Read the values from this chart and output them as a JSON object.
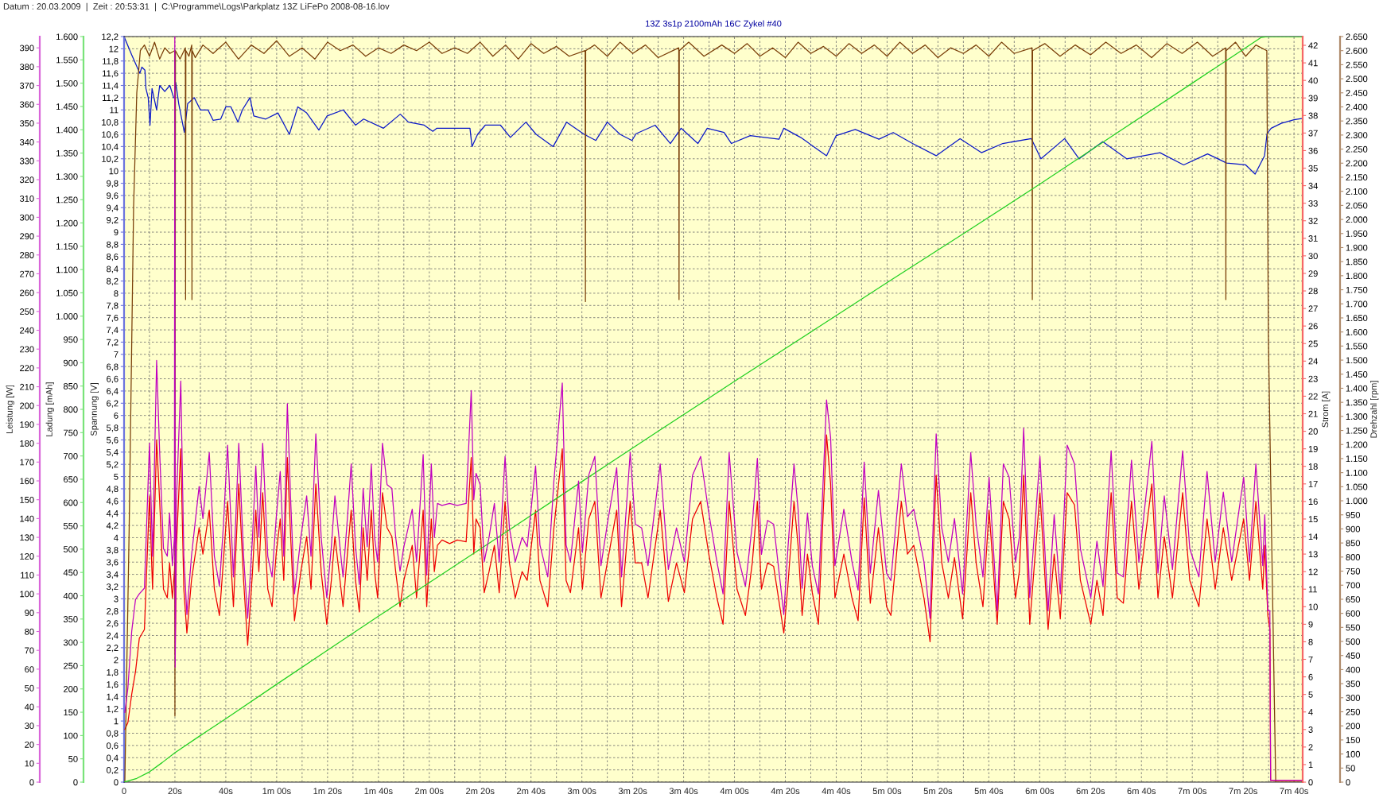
{
  "chart_data": [
    {
      "type": "line",
      "title": "13Z 3s1p 2100mAh 16C Zykel #40",
      "annotations": [
        "Datum : 20.03.2009  |  Zeit : 20:53:31  |  C:\\Programme\\Logs\\Parkplatz 13Z LiFePo 2008-08-16.lov"
      ],
      "grid": true,
      "xlim": [
        0,
        463.4
      ],
      "xticks": [
        0,
        {
          "value": 10,
          "label": null
        },
        {
          "value": 20,
          "label": "20s"
        },
        {
          "value": 30,
          "label": null
        },
        {
          "value": 40,
          "label": "40s"
        },
        {
          "value": 50,
          "label": null
        },
        {
          "value": 60,
          "label": "1m 00s"
        },
        {
          "value": 70,
          "label": null
        },
        {
          "value": 80,
          "label": "1m 20s"
        },
        {
          "value": 90,
          "label": null
        },
        {
          "value": 100,
          "label": "1m 40s"
        },
        {
          "value": 110,
          "label": null
        },
        {
          "value": 120,
          "label": "2m 00s"
        },
        {
          "value": 130,
          "label": null
        },
        {
          "value": 140,
          "label": "2m 20s"
        },
        {
          "value": 150,
          "label": null
        },
        {
          "value": 160,
          "label": "2m 40s"
        },
        {
          "value": 170,
          "label": null
        },
        {
          "value": 180,
          "label": "3m 00s"
        },
        {
          "value": 190,
          "label": null
        },
        {
          "value": 200,
          "label": "3m 20s"
        },
        {
          "value": 210,
          "label": null
        },
        {
          "value": 220,
          "label": "3m 40s"
        },
        {
          "value": 230,
          "label": null
        },
        {
          "value": 240,
          "label": "4m 00s"
        },
        {
          "value": 250,
          "label": null
        },
        {
          "value": 260,
          "label": "4m 20s"
        },
        {
          "value": 270,
          "label": null
        },
        {
          "value": 280,
          "label": "4m 40s"
        },
        {
          "value": 290,
          "label": null
        },
        {
          "value": 300,
          "label": "5m 00s"
        },
        {
          "value": 310,
          "label": null
        },
        {
          "value": 320,
          "label": "5m 20s"
        },
        {
          "value": 330,
          "label": null
        },
        {
          "value": 340,
          "label": "5m 40s"
        },
        {
          "value": 350,
          "label": null
        },
        {
          "value": 360,
          "label": "6m 00s"
        },
        {
          "value": 370,
          "label": null
        },
        {
          "value": 380,
          "label": "6m 20s"
        },
        {
          "value": 390,
          "label": null
        },
        {
          "value": 400,
          "label": "6m 40s"
        },
        {
          "value": 410,
          "label": null
        },
        {
          "value": 420,
          "label": "7m 00s"
        },
        {
          "value": 430,
          "label": null
        },
        {
          "value": 440,
          "label": "7m 20s"
        },
        {
          "value": 450,
          "label": null
        },
        {
          "value": 460,
          "label": "7m 40s"
        }
      ],
      "ylabel": "Spannung [V]",
      "ylim": [
        0,
        12.2
      ],
      "yticks": [
        0,
        {
          "value": 0.2,
          "label": "0,2"
        },
        {
          "value": 0.4,
          "label": "0,4"
        },
        {
          "value": 0.6,
          "label": "0,6"
        },
        {
          "value": 0.8,
          "label": "0,8"
        },
        1,
        {
          "value": 1.2,
          "label": "1,2"
        },
        {
          "value": 1.4,
          "label": "1,4"
        },
        {
          "value": 1.6,
          "label": "1,6"
        },
        {
          "value": 1.8,
          "label": "1,8"
        },
        2,
        {
          "value": 2.2,
          "label": "2,2"
        },
        {
          "value": 2.4,
          "label": "2,4"
        },
        {
          "value": 2.6,
          "label": "2,6"
        },
        {
          "value": 2.8,
          "label": "2,8"
        },
        3,
        {
          "value": 3.2,
          "label": "3,2"
        },
        {
          "value": 3.4,
          "label": "3,4"
        },
        {
          "value": 3.6,
          "label": "3,6"
        },
        {
          "value": 3.8,
          "label": "3,8"
        },
        4,
        {
          "value": 4.2,
          "label": "4,2"
        },
        {
          "value": 4.4,
          "label": "4,4"
        },
        {
          "value": 4.6,
          "label": "4,6"
        },
        {
          "value": 4.8,
          "label": "4,8"
        },
        5,
        {
          "value": 5.2,
          "label": "5,2"
        },
        {
          "value": 5.4,
          "label": "5,4"
        },
        {
          "value": 5.6,
          "label": "5,6"
        },
        {
          "value": 5.8,
          "label": "5,8"
        },
        6,
        {
          "value": 6.2,
          "label": "6,2"
        },
        {
          "value": 6.4,
          "label": "6,4"
        },
        {
          "value": 6.6,
          "label": "6,6"
        },
        {
          "value": 6.8,
          "label": "6,8"
        },
        7,
        {
          "value": 7.2,
          "label": "7,2"
        },
        {
          "value": 7.4,
          "label": "7,4"
        },
        {
          "value": 7.6,
          "label": "7,6"
        },
        {
          "value": 7.8,
          "label": "7,8"
        },
        8,
        {
          "value": 8.2,
          "label": "8,2"
        },
        {
          "value": 8.4,
          "label": "8,4"
        },
        {
          "value": 8.6,
          "label": "8,6"
        },
        {
          "value": 8.8,
          "label": "8,8"
        },
        9,
        {
          "value": 9.2,
          "label": "9,2"
        },
        {
          "value": 9.4,
          "label": "9,4"
        },
        {
          "value": 9.6,
          "label": "9,6"
        },
        {
          "value": 9.8,
          "label": "9,8"
        },
        10,
        {
          "value": 10.2,
          "label": "10,2"
        },
        {
          "value": 10.4,
          "label": "10,4"
        },
        {
          "value": 10.6,
          "label": "10,6"
        },
        {
          "value": 10.8,
          "label": "10,8"
        },
        11,
        {
          "value": 11.2,
          "label": "11,2"
        },
        {
          "value": 11.4,
          "label": "11,4"
        },
        {
          "value": 11.6,
          "label": "11,6"
        },
        {
          "value": 11.8,
          "label": "11,8"
        },
        12,
        {
          "value": 12.2,
          "label": "12,2"
        }
      ],
      "y2label": "Strom [A]",
      "y2lim": [
        0,
        42.5
      ],
      "y2ticks": [
        0,
        1,
        2,
        3,
        4,
        5,
        6,
        7,
        8,
        9,
        10,
        11,
        12,
        13,
        14,
        15,
        16,
        17,
        18,
        19,
        20,
        21,
        22,
        23,
        24,
        25,
        26,
        27,
        28,
        29,
        30,
        31,
        32,
        33,
        34,
        35,
        36,
        37,
        38,
        39,
        40,
        41,
        42
      ],
      "y3label": "Drehzahl [rpm]",
      "y3lim": [
        0,
        2650
      ],
      "y3ticks": [
        0,
        50,
        100,
        150,
        200,
        250,
        300,
        350,
        400,
        450,
        500,
        550,
        600,
        650,
        700,
        750,
        800,
        850,
        900,
        950,
        {
          "value": 1000,
          "label": "1.000"
        },
        {
          "value": 1050,
          "label": "1.050"
        },
        {
          "value": 1100,
          "label": "1.100"
        },
        {
          "value": 1150,
          "label": "1.150"
        },
        {
          "value": 1200,
          "label": "1.200"
        },
        {
          "value": 1250,
          "label": "1.250"
        },
        {
          "value": 1300,
          "label": "1.300"
        },
        {
          "value": 1350,
          "label": "1.350"
        },
        {
          "value": 1400,
          "label": "1.400"
        },
        {
          "value": 1450,
          "label": "1.450"
        },
        {
          "value": 1500,
          "label": "1.500"
        },
        {
          "value": 1550,
          "label": "1.550"
        },
        {
          "value": 1600,
          "label": "1.600"
        },
        {
          "value": 1650,
          "label": "1.650"
        },
        {
          "value": 1700,
          "label": "1.700"
        },
        {
          "value": 1750,
          "label": "1.750"
        },
        {
          "value": 1800,
          "label": "1.800"
        },
        {
          "value": 1850,
          "label": "1.850"
        },
        {
          "value": 1900,
          "label": "1.900"
        },
        {
          "value": 1950,
          "label": "1.950"
        },
        {
          "value": 2000,
          "label": "2.000"
        },
        {
          "value": 2050,
          "label": "2.050"
        },
        {
          "value": 2100,
          "label": "2.100"
        },
        {
          "value": 2150,
          "label": "2.150"
        },
        {
          "value": 2200,
          "label": "2.200"
        },
        {
          "value": 2250,
          "label": "2.250"
        },
        {
          "value": 2300,
          "label": "2.300"
        },
        {
          "value": 2350,
          "label": "2.350"
        },
        {
          "value": 2400,
          "label": "2.400"
        },
        {
          "value": 2450,
          "label": "2.450"
        },
        {
          "value": 2500,
          "label": "2.500"
        },
        {
          "value": 2550,
          "label": "2.550"
        },
        {
          "value": 2600,
          "label": "2.600"
        },
        {
          "value": 2650,
          "label": "2.650"
        }
      ],
      "series": [
        {
          "axis": "y",
          "color": "#0a18c8",
          "x": [
            0,
            3,
            6.2,
            7,
            8.2,
            8.6,
            9.5,
            10.2,
            11,
            12.8,
            14,
            16,
            18,
            19.5,
            20,
            20.3,
            21.5,
            23.7,
            25,
            27.6,
            30,
            33,
            35,
            38,
            40,
            42,
            44.8,
            46.5,
            49.5,
            51,
            55.7,
            60.5,
            65,
            68.3,
            71.8,
            76.6,
            79.8,
            86.2,
            91,
            94.2,
            102,
            108.6,
            111.8,
            118,
            121.4,
            123,
            136,
            136.8,
            139,
            142,
            148,
            151.9,
            158,
            162,
            168.7,
            174,
            180.9,
            185.5,
            190,
            195,
            199.7,
            201.3,
            208.8,
            214.8,
            219,
            225.6,
            229.3,
            235.9,
            238.8,
            246.2,
            257.5,
            259.4,
            266,
            276.2,
            280,
            287.5,
            296.8,
            302.4,
            310,
            319.3,
            328.7,
            337.1,
            345.5,
            356.7,
            360.5,
            369.8,
            375.5,
            384.8,
            394.2,
            407.3,
            416.6,
            426,
            433.5,
            441,
            444.7,
            448.4,
            449.4,
            451,
            455,
            460,
            463
          ],
          "values": [
            12.2,
            11.9,
            11.6,
            11.7,
            11.65,
            11.35,
            11.2,
            10.75,
            11.35,
            11.0,
            11.4,
            11.3,
            11.4,
            11.2,
            11.2,
            11.45,
            11.1,
            10.63,
            11.1,
            11.2,
            11.0,
            11.0,
            10.83,
            10.85,
            11.05,
            11.05,
            10.8,
            11.0,
            11.2,
            10.9,
            10.85,
            10.95,
            10.6,
            11.05,
            10.95,
            10.67,
            10.9,
            11.0,
            10.75,
            10.85,
            10.7,
            10.93,
            10.8,
            10.75,
            10.65,
            10.7,
            10.7,
            10.4,
            10.6,
            10.75,
            10.75,
            10.55,
            10.8,
            10.6,
            10.4,
            10.8,
            10.6,
            10.5,
            10.8,
            10.6,
            10.5,
            10.61,
            10.75,
            10.45,
            10.7,
            10.45,
            10.7,
            10.63,
            10.45,
            10.58,
            10.52,
            10.7,
            10.55,
            10.25,
            10.58,
            10.68,
            10.52,
            10.63,
            10.45,
            10.25,
            10.53,
            10.3,
            10.45,
            10.53,
            10.2,
            10.53,
            10.2,
            10.48,
            10.2,
            10.3,
            10.1,
            10.28,
            10.13,
            10.1,
            9.95,
            10.25,
            10.61,
            10.7,
            10.78,
            10.84,
            10.86
          ]
        },
        {
          "axis": "y2",
          "color": "#ee0000",
          "x": [
            0.3,
            1.5,
            3,
            4.5,
            6,
            8,
            10,
            11.2,
            12.8,
            14,
            15.5,
            17,
            17.9,
            19,
            19.8,
            19.95,
            20.1,
            20.6,
            22.3,
            23.5,
            24.7,
            26.5,
            29.5,
            31,
            33.5,
            35.5,
            37.5,
            39,
            40.7,
            43,
            45.1,
            47,
            48.6,
            50.5,
            51.8,
            53,
            54.5,
            56.5,
            58.2,
            59.8,
            61.4,
            62.8,
            64.2,
            65.5,
            67,
            69.5,
            71.8,
            73.5,
            75.4,
            77.5,
            79.7,
            81.5,
            82.9,
            84.5,
            86.1,
            87.8,
            89.3,
            91,
            92.5,
            94,
            95.6,
            97.2,
            98.5,
            99.7,
            101.6,
            103.4,
            105.3,
            106.8,
            108.5,
            110,
            111.7,
            113.3,
            115,
            117.6,
            119,
            120.8,
            122,
            123.2,
            125,
            128,
            131,
            134.5,
            136.5,
            137.5,
            138.4,
            140,
            141.6,
            143.5,
            145.6,
            147.5,
            149.8,
            151.5,
            153.8,
            156.5,
            158.5,
            161.8,
            163.5,
            166.6,
            169,
            172.3,
            173.8,
            175.5,
            178.7,
            180.2,
            182.7,
            185.1,
            187.5,
            190,
            193.7,
            195.6,
            199,
            201,
            203.5,
            206,
            210.8,
            214,
            217.2,
            220.3,
            223.5,
            226.7,
            229.9,
            233.1,
            235.5,
            237.9,
            241,
            244.3,
            247,
            249,
            250.6,
            253,
            255.4,
            259.4,
            261,
            263.4,
            265,
            266.6,
            268.7,
            270.6,
            273,
            276.2,
            277.8,
            279.5,
            283,
            286.2,
            288.6,
            291,
            293.4,
            296.6,
            299.8,
            301.5,
            305.6,
            308,
            310.5,
            314.5,
            316.9,
            319.3,
            321.5,
            324.1,
            326.5,
            329.7,
            332.9,
            335,
            337.7,
            340.1,
            343.3,
            345.7,
            348,
            350.5,
            352,
            353.7,
            356.1,
            360.1,
            363.3,
            365.7,
            368.1,
            370.8,
            373.7,
            376,
            380.1,
            382.5,
            384.9,
            388.1,
            390.5,
            392.9,
            396.1,
            399,
            404.1,
            406.5,
            409,
            412.2,
            416.2,
            419,
            422.6,
            425.8,
            429,
            432.2,
            435.5,
            440.2,
            442.5,
            445,
            447.7,
            448.5,
            449.7,
            450.5,
            450.8,
            463
          ],
          "values": [
            3.0,
            3.4,
            5.0,
            6.3,
            8.2,
            8.7,
            16.3,
            11.0,
            19.5,
            16.0,
            11.0,
            10.5,
            12.5,
            10.5,
            12.0,
            12.5,
            7.3,
            13.5,
            19.0,
            11.0,
            8.5,
            11.5,
            14.5,
            13.0,
            15.5,
            11.0,
            9.5,
            12.5,
            16.0,
            10.0,
            17.0,
            11.5,
            7.8,
            12.0,
            15.5,
            12.0,
            16.5,
            11.0,
            10.0,
            13.0,
            15.0,
            11.5,
            18.5,
            14.0,
            9.2,
            12.0,
            14.0,
            11.0,
            17.0,
            12.0,
            9.0,
            11.5,
            14.0,
            12.0,
            10.0,
            13.0,
            15.5,
            11.5,
            9.7,
            14.5,
            11.5,
            15.5,
            12.0,
            10.5,
            16.5,
            14.5,
            14.0,
            12.0,
            10.0,
            11.5,
            12.5,
            13.5,
            10.5,
            15.5,
            10.0,
            15.0,
            12.0,
            13.5,
            13.8,
            13.6,
            13.8,
            13.7,
            18.5,
            13.0,
            15.0,
            14.5,
            10.8,
            12.0,
            13.5,
            10.8,
            16.0,
            12.5,
            10.5,
            12.0,
            11.5,
            15.5,
            11.5,
            10.0,
            14.5,
            19.0,
            11.5,
            10.8,
            14.5,
            11.0,
            15.0,
            16.0,
            10.5,
            12.5,
            15.5,
            10.0,
            16.0,
            12.5,
            12.5,
            10.5,
            15.5,
            10.3,
            12.5,
            10.8,
            15.0,
            16.0,
            13.0,
            10.5,
            9.0,
            16.0,
            11.0,
            9.5,
            12.5,
            16.0,
            11.0,
            12.5,
            12.3,
            8.5,
            11.2,
            16.0,
            13.5,
            9.5,
            13.0,
            10.8,
            9.0,
            19.8,
            17.0,
            10.5,
            13.0,
            10.5,
            9.2,
            16.2,
            10.2,
            14.5,
            10.0,
            9.5,
            16.0,
            13.0,
            13.5,
            10.5,
            8.0,
            17.5,
            12.5,
            10.5,
            12.8,
            9.3,
            16.5,
            12.5,
            10.0,
            15.5,
            9.0,
            16.0,
            15.0,
            10.5,
            12.0,
            17.5,
            9.0,
            16.5,
            8.7,
            13.0,
            9.3,
            16.5,
            15.8,
            11.5,
            9.0,
            11.5,
            9.5,
            16.5,
            10.5,
            10.2,
            16.0,
            11.0,
            17.0,
            10.5,
            14.0,
            10.5,
            16.5,
            11.5,
            10.0,
            15.0,
            11.0,
            14.5,
            11.5,
            15.0,
            11.5,
            16.0,
            11.0,
            13.5,
            9.5,
            8.7,
            0.1,
            0.1
          ]
        },
        {
          "axis": "y3",
          "color": "#7a3e08",
          "x": [
            0.3,
            2,
            3.75,
            5,
            6.4,
            8,
            10,
            12,
            14,
            16,
            18,
            19.9,
            20,
            20.2,
            22,
            24.1,
            24.2,
            24.3,
            25.5,
            26.6,
            26.7,
            26.8,
            28,
            31,
            35,
            40,
            45,
            50,
            55,
            60,
            65,
            70,
            75,
            80,
            85,
            90,
            95,
            100,
            105,
            110,
            115,
            120,
            125,
            130,
            135,
            140,
            145,
            150,
            155,
            160,
            165,
            170,
            175,
            181.3,
            181.4,
            181.5,
            185,
            190,
            195,
            200,
            205,
            210,
            218.1,
            218.2,
            218.3,
            222,
            228,
            235,
            240,
            245,
            250,
            255,
            260,
            265,
            270,
            275,
            280,
            285,
            290,
            295,
            300,
            305,
            310,
            315,
            320,
            325,
            330,
            335,
            340,
            345,
            350,
            357,
            357.1,
            357.2,
            362,
            368,
            374,
            380,
            386,
            392,
            398,
            404,
            410,
            416,
            422,
            428,
            433.1,
            433.2,
            433.3,
            437,
            441,
            445,
            449.3,
            449.9,
            451.5,
            452.8,
            463
          ],
          "values": [
            0,
            900,
            2046,
            2450,
            2600,
            2620,
            2580,
            2630,
            2570,
            2610,
            2590,
            2600,
            235,
            2600,
            2570,
            2610,
            1715,
            2600,
            2580,
            2620,
            1715,
            2600,
            2575,
            2620,
            2590,
            2630,
            2570,
            2620,
            2590,
            2635,
            2580,
            2610,
            2570,
            2630,
            2600,
            2620,
            2580,
            2610,
            2590,
            2620,
            2600,
            2630,
            2590,
            2610,
            2590,
            2630,
            2580,
            2620,
            2570,
            2625,
            2590,
            2615,
            2580,
            2600,
            1708,
            2600,
            2620,
            2580,
            2630,
            2590,
            2620,
            2575,
            2610,
            1715,
            2600,
            2630,
            2580,
            2620,
            2590,
            2625,
            2580,
            2610,
            2575,
            2630,
            2590,
            2615,
            2580,
            2625,
            2590,
            2620,
            2580,
            2630,
            2590,
            2620,
            2575,
            2610,
            2590,
            2620,
            2580,
            2630,
            2590,
            2610,
            1715,
            2600,
            2625,
            2580,
            2620,
            2585,
            2630,
            2590,
            2620,
            2575,
            2625,
            2590,
            2630,
            2580,
            2610,
            1715,
            2600,
            2630,
            2580,
            2620,
            2600,
            1594,
            700,
            0,
            0
          ]
        }
      ]
    },
    {
      "type": "line",
      "tick_labels": "y",
      "xlim": [
        0,
        463.4
      ],
      "ylabel": "Ladung [mAh]",
      "ylim": [
        0,
        1600
      ],
      "yticks": [
        0,
        50,
        100,
        150,
        200,
        250,
        300,
        350,
        400,
        450,
        500,
        550,
        600,
        650,
        700,
        750,
        800,
        850,
        900,
        950,
        {
          "value": 1000,
          "label": "1.000"
        },
        {
          "value": 1050,
          "label": "1.050"
        },
        {
          "value": 1100,
          "label": "1.100"
        },
        {
          "value": 1150,
          "label": "1.150"
        },
        {
          "value": 1200,
          "label": "1.200"
        },
        {
          "value": 1250,
          "label": "1.250"
        },
        {
          "value": 1300,
          "label": "1.300"
        },
        {
          "value": 1350,
          "label": "1.350"
        },
        {
          "value": 1400,
          "label": "1.400"
        },
        {
          "value": 1450,
          "label": "1.450"
        },
        {
          "value": 1500,
          "label": "1.500"
        },
        {
          "value": 1550,
          "label": "1.550"
        },
        {
          "value": 1600,
          "label": "1.600"
        }
      ],
      "y2label": "Leistung [W]",
      "y2lim": [
        0,
        396
      ],
      "y2ticks": [
        0,
        10,
        20,
        30,
        40,
        50,
        60,
        70,
        80,
        90,
        100,
        110,
        120,
        130,
        140,
        150,
        160,
        170,
        180,
        190,
        200,
        210,
        220,
        230,
        240,
        250,
        260,
        270,
        280,
        290,
        300,
        310,
        320,
        330,
        340,
        350,
        360,
        370,
        380,
        390
      ],
      "series": [
        {
          "axis": "y",
          "color": "#22d022",
          "x": [
            0,
            5,
            10,
            15,
            20,
            30,
            40,
            60,
            80,
            100,
            120,
            150,
            180,
            210,
            240,
            270,
            300,
            330,
            360,
            390,
            420,
            447,
            450,
            463
          ],
          "values": [
            0,
            8,
            22,
            42,
            63,
            100,
            136,
            210,
            283,
            356,
            428,
            536,
            645,
            753,
            860,
            966,
            1072,
            1177,
            1283,
            1392,
            1500,
            1598,
            1600,
            1600
          ]
        },
        {
          "axis": "y2",
          "color": "#c000c0",
          "x": [
            0.3,
            1.5,
            3,
            4.5,
            6,
            8,
            10,
            11.2,
            12.8,
            14,
            15.5,
            17,
            17.9,
            19,
            19.8,
            19.95,
            20.1,
            20.6,
            22.3,
            23.5,
            24.7,
            26.5,
            29.5,
            31,
            33.5,
            35.5,
            37.5,
            39,
            40.7,
            43,
            45.1,
            47,
            48.6,
            50.5,
            51.8,
            53,
            54.5,
            56.5,
            58.2,
            59.8,
            61.4,
            62.8,
            64.2,
            65.5,
            67,
            69.5,
            71.8,
            73.5,
            75.4,
            77.5,
            79.7,
            81.5,
            82.9,
            84.5,
            86.1,
            87.8,
            89.3,
            91,
            92.5,
            94,
            95.6,
            97.2,
            98.5,
            99.7,
            101.6,
            103.4,
            105.3,
            106.8,
            108.5,
            110,
            111.7,
            113.3,
            115,
            117.6,
            119,
            120.8,
            122,
            123.2,
            125,
            128,
            131,
            134.5,
            136.5,
            137.5,
            138.4,
            140,
            141.6,
            143.5,
            145.6,
            147.5,
            149.8,
            151.5,
            153.8,
            156.5,
            158.5,
            161.8,
            163.5,
            166.6,
            169,
            172.3,
            173.8,
            175.5,
            178.7,
            180.2,
            182.7,
            185.1,
            187.5,
            190,
            193.7,
            195.6,
            199,
            201,
            203.5,
            206,
            210.8,
            214,
            217.2,
            220.3,
            223.5,
            226.7,
            229.9,
            233.1,
            235.5,
            237.9,
            241,
            244.3,
            247,
            249,
            250.6,
            253,
            255.4,
            259.4,
            261,
            263.4,
            265,
            266.6,
            268.7,
            270.6,
            273,
            276.2,
            277.8,
            279.5,
            283,
            286.2,
            288.6,
            291,
            293.4,
            296.6,
            299.8,
            301.5,
            305.6,
            308,
            310.5,
            314.5,
            316.9,
            319.3,
            321.5,
            324.1,
            326.5,
            329.7,
            332.9,
            335,
            337.7,
            340.1,
            343.3,
            345.7,
            348,
            350.5,
            352,
            353.7,
            356.1,
            360.1,
            363.3,
            365.7,
            368.1,
            370.8,
            373.7,
            376,
            380.1,
            382.5,
            384.9,
            388.1,
            390.5,
            392.9,
            396.1,
            399,
            404.1,
            406.5,
            409,
            412.2,
            416.2,
            419,
            422.6,
            425.8,
            429,
            432.2,
            435.5,
            440.2,
            442.5,
            445,
            447.7,
            448.5,
            449.7,
            450.5,
            450.8,
            463
          ],
          "values": [
            37,
            50,
            80,
            97,
            100,
            103,
            180,
            120,
            224,
            175,
            124,
            120,
            143,
            115,
            130,
            396,
            61,
            150,
            213,
            120,
            89,
            120,
            157,
            140,
            175,
            120,
            104,
            135,
            179,
            109,
            180,
            120,
            87,
            130,
            168,
            130,
            180,
            120,
            109,
            140,
            165,
            120,
            201,
            150,
            100,
            130,
            152,
            120,
            185,
            130,
            98,
            125,
            152,
            130,
            109,
            140,
            169,
            125,
            105,
            156,
            125,
            169,
            130,
            117,
            180,
            158,
            156,
            130,
            112,
            125,
            135,
            145,
            117,
            174,
            110,
            169,
            130,
            148,
            147,
            148,
            147,
            148,
            208,
            150,
            164,
            158,
            117,
            130,
            148,
            117,
            173,
            135,
            117,
            130,
            125,
            168,
            126,
            109,
            160,
            212,
            126,
            117,
            160,
            122,
            163,
            173,
            115,
            137,
            167,
            109,
            175,
            137,
            135,
            115,
            169,
            113,
            135,
            117,
            163,
            173,
            143,
            117,
            100,
            175,
            122,
            104,
            137,
            172,
            121,
            139,
            137,
            89,
            124,
            169,
            145,
            103,
            143,
            115,
            100,
            203,
            183,
            115,
            145,
            117,
            102,
            170,
            111,
            155,
            111,
            107,
            169,
            141,
            145,
            117,
            87,
            185,
            135,
            117,
            140,
            100,
            175,
            137,
            109,
            162,
            91,
            169,
            162,
            117,
            130,
            188,
            98,
            173,
            91,
            142,
            100,
            179,
            169,
            124,
            98,
            128,
            104,
            176,
            111,
            109,
            171,
            117,
            181,
            111,
            152,
            113,
            176,
            124,
            109,
            165,
            117,
            154,
            117,
            162,
            117,
            169,
            115,
            142,
            91,
            91,
            1,
            1
          ]
        }
      ]
    }
  ]
}
